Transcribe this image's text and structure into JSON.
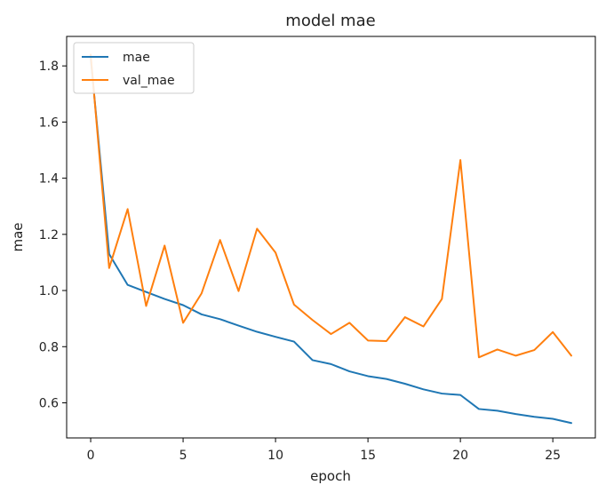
{
  "chart_data": {
    "type": "line",
    "title": "model mae",
    "xlabel": "epoch",
    "ylabel": "mae",
    "xlim": [
      -1.3,
      27.3
    ],
    "ylim": [
      0.475,
      1.905
    ],
    "x_ticks": [
      0,
      5,
      10,
      15,
      20,
      25
    ],
    "y_ticks": [
      0.6,
      0.8,
      1.0,
      1.2,
      1.4,
      1.6,
      1.8
    ],
    "grid": false,
    "legend_position": "upper left",
    "x": [
      0,
      1,
      2,
      3,
      4,
      5,
      6,
      7,
      8,
      9,
      10,
      11,
      12,
      13,
      14,
      15,
      16,
      17,
      18,
      19,
      20,
      21,
      22,
      23,
      24,
      25,
      26
    ],
    "series": [
      {
        "name": "mae",
        "color": "#1f77b4",
        "values": [
          1.83,
          1.13,
          1.02,
          0.995,
          0.97,
          0.948,
          0.915,
          0.898,
          0.875,
          0.853,
          0.835,
          0.818,
          0.752,
          0.738,
          0.712,
          0.695,
          0.685,
          0.668,
          0.648,
          0.633,
          0.628,
          0.578,
          0.572,
          0.56,
          0.55,
          0.543,
          0.528
        ]
      },
      {
        "name": "val_mae",
        "color": "#ff7f0e",
        "values": [
          1.84,
          1.08,
          1.29,
          0.945,
          1.16,
          0.885,
          0.99,
          1.18,
          0.998,
          1.22,
          1.135,
          0.95,
          0.895,
          0.845,
          0.885,
          0.822,
          0.82,
          0.905,
          0.872,
          0.97,
          1.465,
          0.762,
          0.79,
          0.768,
          0.788,
          0.852,
          0.768
        ]
      }
    ]
  }
}
